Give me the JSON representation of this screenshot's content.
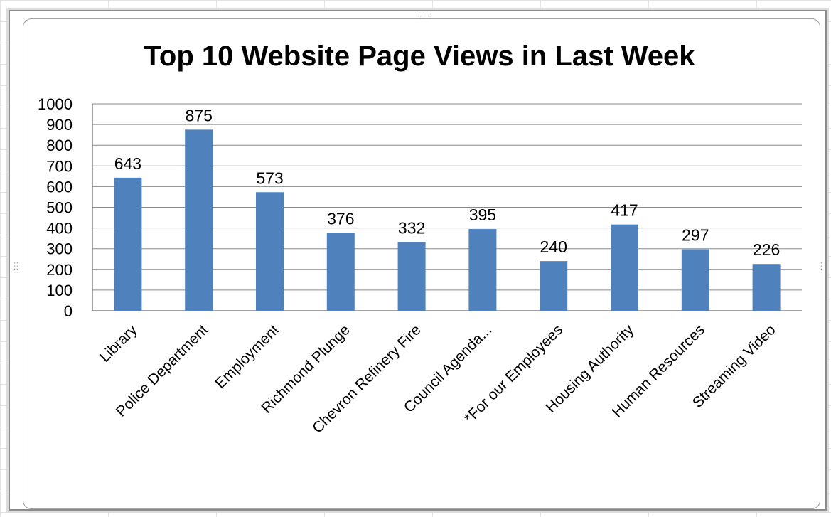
{
  "chart_data": {
    "type": "bar",
    "title": "Top 10 Website Page Views in Last Week",
    "xlabel": "",
    "ylabel": "",
    "categories": [
      "Library",
      "Police Department",
      "Employment",
      "Richmond Plunge",
      "Chevron Refinery Fire",
      "Council Agenda...",
      "*For our Employees",
      "Housing Authority",
      "Human Resources",
      "Streaming Video"
    ],
    "values": [
      643,
      875,
      573,
      376,
      332,
      395,
      240,
      417,
      297,
      226
    ],
    "data_labels": [
      "643",
      "875",
      "573",
      "376",
      "332",
      "395",
      "240",
      "417",
      "297",
      "226"
    ],
    "ylim": [
      0,
      1000
    ],
    "yticks": [
      "0",
      "100",
      "200",
      "300",
      "400",
      "500",
      "600",
      "700",
      "800",
      "900",
      "1000"
    ],
    "grid": true,
    "legend": "none",
    "bar_color": "#4f81bd"
  }
}
